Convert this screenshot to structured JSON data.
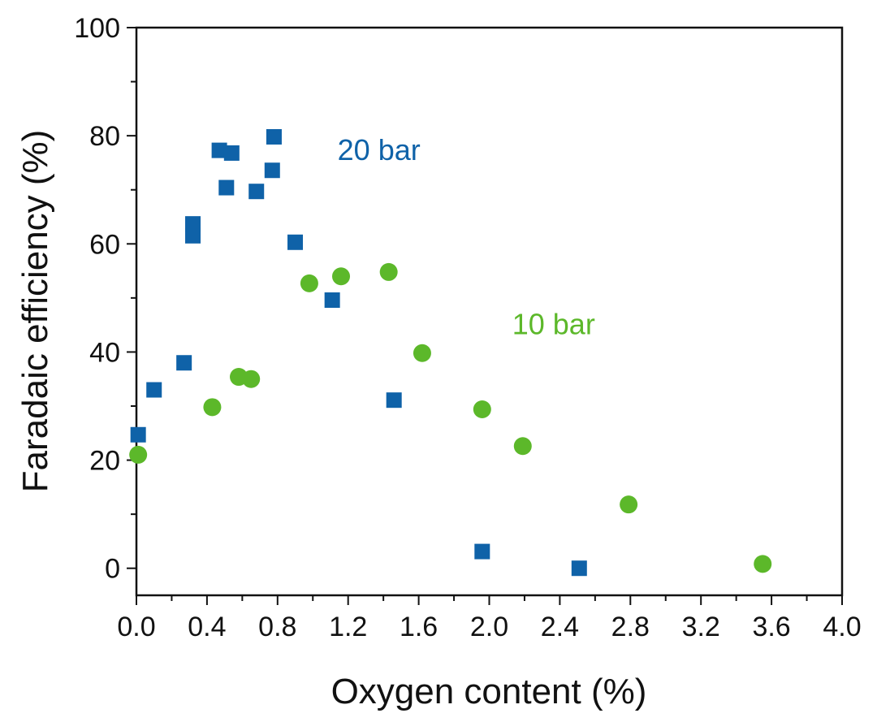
{
  "chart_data": {
    "type": "scatter",
    "title": "",
    "xlabel": "Oxygen content (%)",
    "ylabel": "Faradaic efficiency (%)",
    "xlim": [
      0.0,
      4.0
    ],
    "ylim": [
      -5,
      100
    ],
    "x_ticks": [
      0.0,
      0.4,
      0.8,
      1.2,
      1.6,
      2.0,
      2.4,
      2.8,
      3.2,
      3.6,
      4.0
    ],
    "x_tick_labels": [
      "0.0",
      "0.4",
      "0.8",
      "1.2",
      "1.6",
      "2.0",
      "2.4",
      "2.8",
      "3.2",
      "3.6",
      "4.0"
    ],
    "y_ticks": [
      0,
      20,
      40,
      60,
      80,
      100
    ],
    "y_tick_labels": [
      "0",
      "20",
      "40",
      "60",
      "80",
      "100"
    ],
    "grid": false,
    "legend": "none",
    "series": [
      {
        "name": "20 bar",
        "marker": "square",
        "color": "#0f62a8",
        "points": [
          [
            0.01,
            24.7
          ],
          [
            0.1,
            33.0
          ],
          [
            0.27,
            38.0
          ],
          [
            0.32,
            63.7
          ],
          [
            0.32,
            61.5
          ],
          [
            0.47,
            77.3
          ],
          [
            0.51,
            70.4
          ],
          [
            0.54,
            76.8
          ],
          [
            0.68,
            69.7
          ],
          [
            0.77,
            73.6
          ],
          [
            0.78,
            79.8
          ],
          [
            0.9,
            60.3
          ],
          [
            1.11,
            49.6
          ],
          [
            1.46,
            31.1
          ],
          [
            1.96,
            3.1
          ],
          [
            2.51,
            0.0
          ]
        ]
      },
      {
        "name": "10 bar",
        "marker": "circle",
        "color": "#5cb82a",
        "points": [
          [
            0.01,
            21.0
          ],
          [
            0.43,
            29.8
          ],
          [
            0.58,
            35.4
          ],
          [
            0.65,
            35.0
          ],
          [
            0.98,
            52.7
          ],
          [
            1.16,
            54.0
          ],
          [
            1.43,
            54.8
          ],
          [
            1.62,
            39.8
          ],
          [
            1.96,
            29.4
          ],
          [
            2.19,
            22.6
          ],
          [
            2.79,
            11.8
          ],
          [
            3.55,
            0.8
          ]
        ]
      }
    ],
    "annotations": [
      {
        "text": "20 bar",
        "series": "20 bar",
        "x": 1.14,
        "y": 75.5
      },
      {
        "text": "10 bar",
        "series": "10 bar",
        "x": 2.13,
        "y": 43.3
      }
    ]
  }
}
